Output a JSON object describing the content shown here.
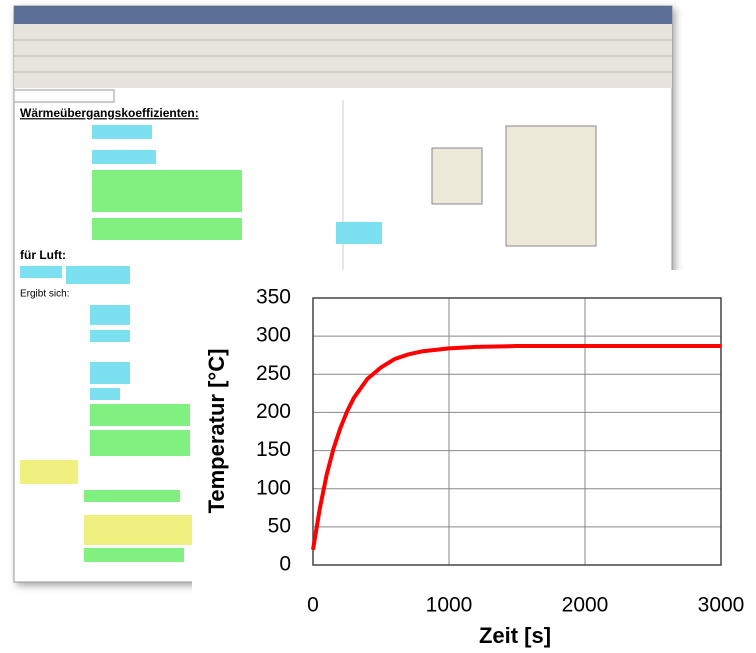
{
  "screenshot": {
    "headings": [
      "Wärmeübergangskoeffizienten:",
      "für Luft:",
      "Ergibt sich:"
    ]
  },
  "chart_data": {
    "type": "line",
    "x_label": "Zeit [s]",
    "y_label": "Temperatur [°C]",
    "x": [
      0,
      50,
      100,
      150,
      200,
      250,
      300,
      400,
      500,
      600,
      700,
      800,
      1000,
      1200,
      1500,
      2000,
      2500,
      3000
    ],
    "values": [
      20,
      74,
      118,
      152,
      179,
      201,
      219,
      244,
      259,
      270,
      276,
      280,
      284,
      286,
      287,
      287,
      287,
      287
    ],
    "color": "#ff0000",
    "xlim": [
      0,
      3000
    ],
    "xticks": [
      0,
      1000,
      2000,
      3000
    ],
    "ylim": [
      0,
      350
    ],
    "yticks": [
      0,
      50,
      100,
      150,
      200,
      250,
      300,
      350
    ],
    "grid": true
  }
}
